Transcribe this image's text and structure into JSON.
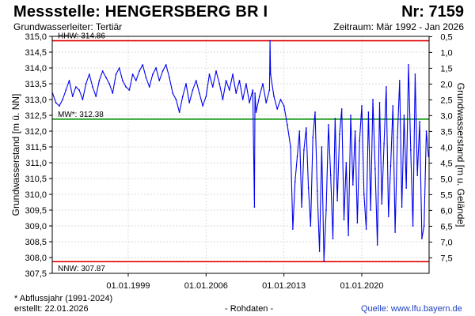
{
  "header": {
    "title": "Messstelle: HENGERSBERG BR I",
    "number": "Nr: 7159",
    "aquifer": "Grundwasserleiter: Tertiär",
    "period": "Zeitraum: Mär 1992 - Jan 2026"
  },
  "footer": {
    "note": "* Abflussjahr (1991-2024)",
    "created": "erstellt:  22.01.2026",
    "center": "- Rohdaten -",
    "source": "Quelle: www.lfu.bayern.de"
  },
  "colors": {
    "series": "#0000ee",
    "high_low_lines": "#e00000",
    "mean_line": "#009000",
    "grid": "#cfcfcf"
  },
  "chart_data": {
    "type": "line",
    "ylabel": "Grundwasserstand [m ü. NN]",
    "y2label": "Grundwasserstand [m u. Gelände]",
    "ylim": [
      307.5,
      315.0
    ],
    "y_ticks": [
      "315,0",
      "314,5",
      "314,0",
      "313,5",
      "313,0",
      "312,5",
      "312,0",
      "311,5",
      "311,0",
      "310,5",
      "310,0",
      "309,5",
      "309,0",
      "308,5",
      "308,0",
      "307,5"
    ],
    "y2_ticks": [
      "0,5",
      "1,0",
      "1,5",
      "2,0",
      "2,5",
      "3,0",
      "3,5",
      "4,0",
      "4,5",
      "5,0",
      "5,5",
      "6,0",
      "6,5",
      "7,0",
      "7,5"
    ],
    "x_range": [
      "1992-03",
      "2026-01"
    ],
    "x_ticks": [
      {
        "label": "01.01.1999",
        "year": 1999.0
      },
      {
        "label": "01.01.2006",
        "year": 2006.0
      },
      {
        "label": "01.01.2013",
        "year": 2013.0
      },
      {
        "label": "01.01.2020",
        "year": 2020.0
      }
    ],
    "grid": true,
    "reference_lines": [
      {
        "label": "HHW: 314.86",
        "value": 314.86,
        "kind": "high"
      },
      {
        "label": "MW*: 312.38",
        "value": 312.38,
        "kind": "mean"
      },
      {
        "label": "NNW: 307.87",
        "value": 307.87,
        "kind": "low"
      }
    ],
    "series": [
      {
        "x": [
          1992.2,
          1992.5,
          1992.8,
          1993.1,
          1993.4,
          1993.7,
          1994.0,
          1994.3,
          1994.6,
          1994.9,
          1995.2,
          1995.5,
          1995.8,
          1996.1,
          1996.4,
          1996.7,
          1997.0,
          1997.3,
          1997.6,
          1997.9,
          1998.2,
          1998.5,
          1998.8,
          1999.1,
          1999.4,
          1999.7,
          2000.0,
          2000.3,
          2000.6,
          2000.9,
          2001.2,
          2001.5,
          2001.8,
          2002.1,
          2002.4,
          2002.7,
          2003.0,
          2003.3,
          2003.6,
          2003.9,
          2004.2,
          2004.5,
          2004.8,
          2005.1,
          2005.4,
          2005.7,
          2006.0,
          2006.3,
          2006.6,
          2006.9,
          2007.2,
          2007.5,
          2007.8,
          2008.1,
          2008.4,
          2008.7,
          2009.0,
          2009.3,
          2009.6,
          2009.9,
          2010.2,
          2010.35,
          2010.4,
          2010.5,
          2010.8,
          2011.1,
          2011.4,
          2011.7,
          2011.75,
          2011.8,
          2012.1,
          2012.4,
          2012.7,
          2013.0,
          2013.3,
          2013.6,
          2013.8,
          2014.0,
          2014.2,
          2014.4,
          2014.6,
          2014.8,
          2015.0,
          2015.2,
          2015.4,
          2015.6,
          2015.8,
          2016.0,
          2016.2,
          2016.4,
          2016.6,
          2016.8,
          2017.0,
          2017.2,
          2017.4,
          2017.6,
          2017.8,
          2018.0,
          2018.2,
          2018.4,
          2018.6,
          2018.8,
          2019.0,
          2019.2,
          2019.4,
          2019.6,
          2019.8,
          2020.0,
          2020.2,
          2020.4,
          2020.6,
          2020.8,
          2021.0,
          2021.2,
          2021.4,
          2021.6,
          2021.8,
          2022.0,
          2022.2,
          2022.4,
          2022.6,
          2022.8,
          2023.0,
          2023.2,
          2023.4,
          2023.6,
          2023.8,
          2024.0,
          2024.2,
          2024.4,
          2024.6,
          2024.8,
          2025.0,
          2025.2,
          2025.4,
          2025.6,
          2025.8,
          2026.0
        ],
        "y": [
          313.2,
          312.9,
          312.8,
          313.0,
          313.3,
          313.6,
          313.1,
          313.4,
          313.3,
          313.0,
          313.5,
          313.8,
          313.4,
          313.1,
          313.6,
          313.9,
          313.7,
          313.5,
          313.2,
          313.8,
          314.0,
          313.6,
          313.4,
          313.3,
          313.8,
          313.6,
          313.9,
          314.1,
          313.7,
          313.4,
          313.8,
          314.0,
          313.6,
          313.9,
          314.1,
          313.7,
          313.2,
          313.0,
          312.6,
          313.1,
          313.5,
          312.9,
          313.3,
          313.6,
          313.2,
          312.8,
          313.1,
          313.8,
          313.4,
          313.9,
          313.5,
          313.0,
          313.6,
          313.3,
          313.8,
          313.2,
          313.6,
          313.0,
          313.5,
          312.9,
          313.3,
          309.6,
          313.2,
          312.6,
          313.1,
          313.5,
          312.9,
          313.3,
          314.86,
          313.8,
          313.1,
          312.7,
          313.0,
          312.8,
          312.2,
          311.5,
          308.9,
          310.4,
          311.2,
          312.0,
          309.6,
          311.4,
          312.1,
          310.2,
          309.0,
          311.8,
          312.6,
          310.1,
          308.2,
          311.5,
          307.9,
          309.5,
          312.2,
          310.6,
          308.6,
          312.4,
          309.8,
          311.9,
          312.7,
          309.2,
          311.0,
          308.7,
          312.5,
          310.3,
          312.0,
          309.1,
          311.7,
          312.8,
          310.0,
          308.9,
          312.6,
          309.5,
          313.0,
          310.8,
          308.4,
          312.9,
          309.7,
          311.6,
          313.4,
          309.3,
          310.9,
          312.8,
          308.8,
          311.8,
          313.6,
          309.6,
          312.5,
          310.2,
          314.1,
          311.4,
          309.0,
          313.8,
          310.6,
          312.3,
          308.6,
          309.0,
          312.0,
          311.2
        ]
      }
    ]
  }
}
